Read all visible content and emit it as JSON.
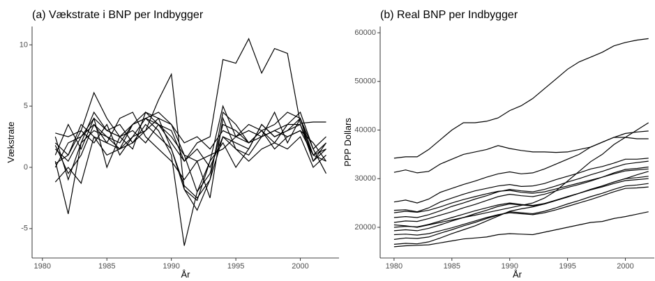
{
  "chart_data": [
    {
      "type": "line",
      "title": "(a) Vækstrate i BNP per Indbygger",
      "xlabel": "År",
      "ylabel": "Vækstrate",
      "x": [
        1981,
        1982,
        1983,
        1984,
        1985,
        1986,
        1987,
        1988,
        1989,
        1990,
        1991,
        1992,
        1993,
        1994,
        1995,
        1996,
        1997,
        1998,
        1999,
        2000,
        2001,
        2002
      ],
      "xlim": [
        1979.2,
        2003
      ],
      "xticks": [
        1980,
        1985,
        1990,
        1995,
        2000
      ],
      "ylim": [
        -7.4,
        11.5
      ],
      "yticks": [
        -5,
        0,
        5,
        10
      ],
      "series": [
        {
          "color": "#000000",
          "values": [
            2.5,
            -1.0,
            2.0,
            4.5,
            3.0,
            2.5,
            3.5,
            4.0,
            3.5,
            3.0,
            0.5,
            2.0,
            2.5,
            8.8,
            8.5,
            10.5,
            7.7,
            9.7,
            9.3,
            3.6,
            3.7,
            3.7
          ]
        },
        {
          "color": "#000000",
          "values": [
            1.5,
            0.5,
            2.5,
            3.5,
            2.0,
            1.5,
            2.5,
            3.0,
            5.5,
            7.6,
            -1.8,
            -3.5,
            -1.0,
            4.5,
            3.5,
            2.0,
            2.5,
            3.0,
            3.5,
            3.5,
            1.0,
            0.5
          ]
        },
        {
          "color": "#000000",
          "values": [
            0.5,
            -3.8,
            2.0,
            3.0,
            2.5,
            2.0,
            3.5,
            4.0,
            3.0,
            1.0,
            -6.4,
            -2.0,
            -0.5,
            3.5,
            3.0,
            2.0,
            3.0,
            3.5,
            4.5,
            4.0,
            1.5,
            -0.5
          ]
        },
        {
          "color": "#000000",
          "values": [
            2.0,
            1.0,
            3.0,
            6.1,
            4.0,
            2.5,
            1.5,
            4.5,
            3.5,
            2.0,
            0.5,
            1.5,
            0.0,
            2.5,
            2.0,
            1.5,
            3.5,
            2.5,
            3.0,
            3.5,
            0.5,
            1.5
          ]
        },
        {
          "color": "#000000",
          "values": [
            1.0,
            3.5,
            1.5,
            4.0,
            3.0,
            3.5,
            2.0,
            3.0,
            4.0,
            3.5,
            2.0,
            2.5,
            1.5,
            3.0,
            2.5,
            3.0,
            2.5,
            3.0,
            2.5,
            3.0,
            1.0,
            1.5
          ]
        },
        {
          "color": "#000000",
          "values": [
            -1.2,
            0.0,
            -1.3,
            2.5,
            2.0,
            4.0,
            4.5,
            2.5,
            1.5,
            0.5,
            -1.0,
            0.5,
            -2.5,
            4.0,
            1.5,
            1.0,
            2.5,
            4.5,
            2.0,
            4.0,
            0.5,
            2.0
          ]
        },
        {
          "color": "#000000",
          "values": [
            0.3,
            1.0,
            3.5,
            2.5,
            1.0,
            1.5,
            3.5,
            4.5,
            4.0,
            1.5,
            -1.5,
            -2.5,
            -1.0,
            2.5,
            1.5,
            0.5,
            1.5,
            2.0,
            1.5,
            2.5,
            0.0,
            1.0
          ]
        },
        {
          "color": "#000000",
          "values": [
            2.8,
            2.5,
            3.0,
            2.0,
            3.5,
            1.0,
            2.5,
            4.0,
            4.5,
            3.5,
            1.0,
            0.5,
            1.0,
            1.5,
            2.5,
            2.0,
            3.0,
            2.0,
            3.5,
            4.5,
            1.5,
            2.5
          ]
        },
        {
          "color": "#000000",
          "values": [
            0.0,
            2.0,
            2.5,
            4.0,
            0.0,
            2.5,
            3.0,
            2.0,
            3.5,
            2.5,
            1.0,
            -2.0,
            0.5,
            5.0,
            2.5,
            3.5,
            3.0,
            1.5,
            2.5,
            3.0,
            2.0,
            0.5
          ]
        },
        {
          "color": "#000000",
          "values": [
            1.8,
            -0.5,
            1.0,
            3.5,
            2.5,
            1.5,
            2.0,
            3.5,
            2.5,
            1.5,
            -1.8,
            -2.7,
            0.5,
            2.0,
            0.0,
            1.5,
            3.5,
            2.5,
            3.0,
            4.0,
            1.0,
            2.0
          ]
        }
      ]
    },
    {
      "type": "line",
      "title": "(b) Real BNP per Indbygger",
      "xlabel": "År",
      "ylabel": "PPP Dollars",
      "x": [
        1980,
        1981,
        1982,
        1983,
        1984,
        1985,
        1986,
        1987,
        1988,
        1989,
        1990,
        1991,
        1992,
        1993,
        1994,
        1995,
        1996,
        1997,
        1998,
        1999,
        2000,
        2001,
        2002
      ],
      "xlim": [
        1978.8,
        2002.5
      ],
      "xticks": [
        1980,
        1985,
        1990,
        1995,
        2000
      ],
      "ylim": [
        13690,
        61290
      ],
      "yticks": [
        20000,
        30000,
        40000,
        50000,
        60000
      ],
      "series": [
        {
          "color": "#000000",
          "values": [
            34200,
            34500,
            34500,
            36000,
            38000,
            40000,
            41500,
            41500,
            41800,
            42500,
            44000,
            45000,
            46500,
            48500,
            50500,
            52500,
            54000,
            55000,
            56000,
            57300,
            58000,
            58500,
            58800
          ]
        },
        {
          "color": "#000000",
          "values": [
            31300,
            31800,
            31200,
            31500,
            33000,
            34000,
            35000,
            35500,
            36000,
            36800,
            36200,
            35800,
            35500,
            35500,
            35400,
            35500,
            36000,
            36500,
            37500,
            38500,
            38500,
            38200,
            38200
          ]
        },
        {
          "color": "#000000",
          "values": [
            20500,
            20300,
            20000,
            20500,
            21000,
            21500,
            22000,
            22500,
            23000,
            23500,
            24000,
            24500,
            25000,
            26000,
            27500,
            29500,
            31500,
            33500,
            35000,
            37000,
            38500,
            40000,
            41500
          ]
        },
        {
          "color": "#000000",
          "values": [
            25200,
            25600,
            25000,
            25800,
            27200,
            28000,
            28800,
            29500,
            30300,
            31000,
            31400,
            31000,
            31200,
            32000,
            33000,
            34000,
            35000,
            36500,
            37500,
            38500,
            39300,
            39600,
            39800
          ]
        },
        {
          "color": "#000000",
          "values": [
            23500,
            23600,
            23200,
            24000,
            25200,
            26000,
            26800,
            27500,
            28000,
            28500,
            28800,
            28400,
            28500,
            29000,
            29800,
            30500,
            31200,
            32000,
            32500,
            33200,
            34000,
            34000,
            34200
          ]
        },
        {
          "color": "#000000",
          "values": [
            16000,
            16200,
            16300,
            16400,
            16800,
            17200,
            17600,
            17800,
            18000,
            18500,
            18700,
            18600,
            18500,
            19000,
            19500,
            20000,
            20500,
            21000,
            21200,
            21800,
            22200,
            22700,
            23200
          ]
        },
        {
          "color": "#000000",
          "values": [
            21000,
            21300,
            21200,
            21800,
            22500,
            23200,
            24000,
            24700,
            25500,
            26300,
            26800,
            26500,
            26300,
            26800,
            27500,
            28200,
            28800,
            29500,
            30300,
            31200,
            31900,
            32100,
            32400
          ]
        },
        {
          "color": "#000000",
          "values": [
            19300,
            19500,
            19300,
            19800,
            20500,
            21300,
            22000,
            22800,
            23500,
            24300,
            24800,
            24600,
            24400,
            24800,
            25500,
            26200,
            27000,
            27800,
            28500,
            29300,
            30000,
            30200,
            30500
          ]
        },
        {
          "color": "#000000",
          "values": [
            17500,
            17800,
            17700,
            18000,
            18800,
            19500,
            20300,
            21000,
            21800,
            22500,
            23200,
            23000,
            22800,
            23300,
            24000,
            24800,
            25500,
            26300,
            27000,
            27800,
            28500,
            28700,
            29000
          ]
        },
        {
          "color": "#000000",
          "values": [
            20000,
            20200,
            20100,
            20600,
            21300,
            22000,
            22700,
            23400,
            24000,
            24600,
            25000,
            24700,
            24500,
            24900,
            25600,
            26300,
            27000,
            27700,
            28300,
            29000,
            29600,
            29800,
            30000
          ]
        },
        {
          "color": "#000000",
          "values": [
            16500,
            16700,
            16600,
            17000,
            17800,
            18700,
            19500,
            20300,
            21300,
            22300,
            23300,
            23800,
            24200,
            24800,
            25500,
            26300,
            27000,
            27800,
            28500,
            29300,
            30000,
            30800,
            31500
          ]
        },
        {
          "color": "#000000",
          "values": [
            22000,
            22200,
            22000,
            22600,
            23400,
            24300,
            25000,
            25800,
            26500,
            27300,
            27800,
            27500,
            27300,
            27800,
            28500,
            29300,
            30000,
            30800,
            31500,
            32300,
            33000,
            33300,
            33600
          ]
        },
        {
          "color": "#000000",
          "values": [
            18500,
            18600,
            18400,
            18700,
            19300,
            19900,
            20600,
            21300,
            22000,
            22600,
            23000,
            22800,
            22600,
            23000,
            23600,
            24300,
            25000,
            25700,
            26500,
            27300,
            28000,
            28100,
            28300
          ]
        },
        {
          "color": "#000000",
          "values": [
            23000,
            23300,
            23100,
            23500,
            24200,
            25000,
            25700,
            26300,
            26900,
            27400,
            27600,
            27200,
            27000,
            27300,
            27900,
            28500,
            29100,
            29700,
            30300,
            31000,
            31600,
            31800,
            32000
          ]
        }
      ]
    }
  ]
}
